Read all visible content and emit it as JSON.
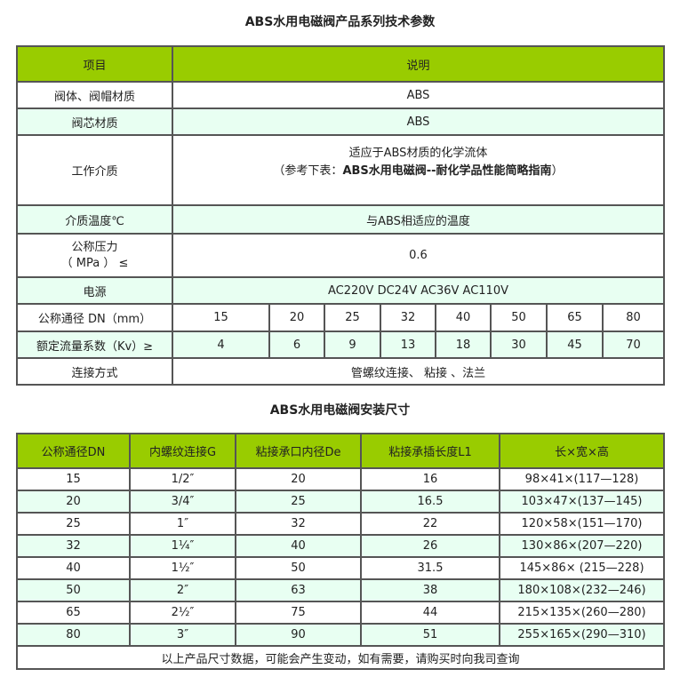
{
  "table1": {
    "title": "ABS水用电磁阀产品系列技术参数",
    "header": [
      "项目",
      "说明"
    ],
    "body_material": {
      "label": "阀体、阀帽材质",
      "value": "ABS"
    },
    "core_material": {
      "label": "阀芯材质",
      "value": "ABS"
    },
    "medium": {
      "label": "工作介质",
      "line1": "适应于ABS材质的化学流体",
      "line2_prefix": "（参考下表：",
      "line2_bold": "ABS水用电磁阀--耐化学品性能简略指南",
      "line2_suffix": "）"
    },
    "temperature": {
      "label": "介质温度℃",
      "value": "与ABS相适应的温度"
    },
    "pressure": {
      "label_line1": "公称压力",
      "label_line2": "（ MPa ） ≤",
      "value": "0.6"
    },
    "power": {
      "label": "电源",
      "value": "AC220V DC24V AC36V AC110V"
    },
    "dn": {
      "label": "公称通径 DN（mm）",
      "values": [
        "15",
        "20",
        "25",
        "32",
        "40",
        "50",
        "65",
        "80"
      ]
    },
    "kv": {
      "label": "额定流量系数（Kv）≥",
      "values": [
        "4",
        "6",
        "9",
        "13",
        "18",
        "30",
        "45",
        "70"
      ]
    },
    "connection": {
      "label": "连接方式",
      "value": "管螺纹连接、 粘接 、法兰"
    }
  },
  "table2": {
    "title": "ABS水用电磁阀安装尺寸",
    "header": [
      "公称通径DN",
      "内螺纹连接G",
      "粘接承口内径De",
      "粘接承插长度L1",
      "长×宽×高"
    ],
    "rows": [
      [
        "15",
        "1/2″",
        "20",
        "16",
        "98×41×(117—128)"
      ],
      [
        "20",
        "3/4″",
        "25",
        "16.5",
        "103×47×(137—145)"
      ],
      [
        "25",
        "1″",
        "32",
        "22",
        "120×58×(151—170)"
      ],
      [
        "32",
        "1¼″",
        "40",
        "26",
        "130×86×(207—220)"
      ],
      [
        "40",
        "1½″",
        "50",
        "31.5",
        "145×86× (215—228)"
      ],
      [
        "50",
        "2″",
        "63",
        "38",
        "180×108×(232—246)"
      ],
      [
        "65",
        "2½″",
        "75",
        "44",
        "215×135×(260—280)"
      ],
      [
        "80",
        "3″",
        "90",
        "51",
        "255×165×(290—310)"
      ]
    ],
    "footer": "以上产品尺寸数据，可能会产生变动，如有需要，请购买时向我司查询"
  },
  "colors": {
    "header": "#99cc00",
    "alt_row": "#e8fff2",
    "border": "#555555"
  }
}
